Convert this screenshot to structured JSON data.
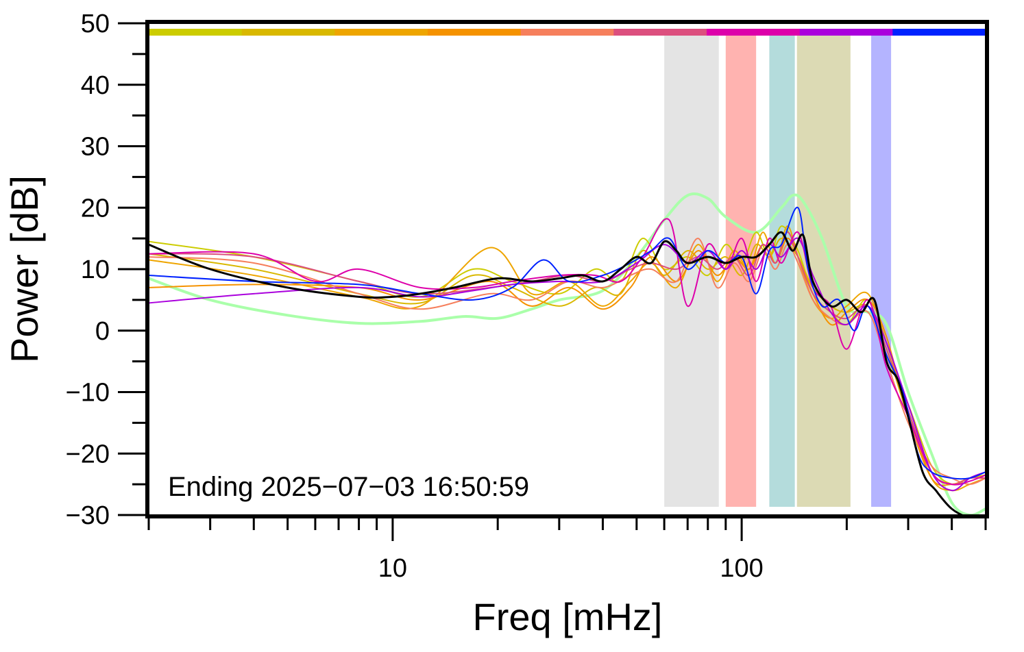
{
  "chart_data": {
    "type": "line",
    "xlabel": "Freq [mHz]",
    "ylabel": "Power [dB]",
    "x_scale": "log",
    "xlim": [
      2,
      500
    ],
    "ylim": [
      -30,
      50
    ],
    "x_major_ticks": [
      10,
      100
    ],
    "x_major_tick_labels": [
      "10",
      "100"
    ],
    "y_ticks": [
      -30,
      -20,
      -10,
      0,
      10,
      20,
      30,
      40,
      50
    ],
    "y_tick_labels": [
      "−30",
      "−20",
      "−10",
      "0",
      "10",
      "20",
      "30",
      "40",
      "50"
    ],
    "annotation": "Ending 2025−07−03 16:50:59",
    "grid": false,
    "time_bar_colors": [
      "#cccc00",
      "#d9b800",
      "#eea500",
      "#f59200",
      "#f67f5c",
      "#dc4f7e",
      "#dd00aa",
      "#aa00dd",
      "#0022ff"
    ],
    "bands": [
      {
        "from": 60,
        "to": 86,
        "color": "#e4e4e4"
      },
      {
        "from": 90,
        "to": 110,
        "color": "#ffb3b0"
      },
      {
        "from": 120,
        "to": 142,
        "color": "#b4dcdc"
      },
      {
        "from": 144,
        "to": 205,
        "color": "#dcdab4"
      },
      {
        "from": 235,
        "to": 268,
        "color": "#b4b4ff"
      }
    ],
    "series": [
      {
        "color": "#aaffaa",
        "width": 4,
        "x": [
          2,
          3,
          5,
          8,
          12,
          16,
          20,
          25,
          30,
          40,
          50,
          60,
          70,
          80,
          90,
          110,
          130,
          140,
          150,
          170,
          200,
          230,
          260,
          300,
          350,
          400,
          450,
          500
        ],
        "y": [
          8.5,
          5,
          2.5,
          1.2,
          1.5,
          2.3,
          2.0,
          3.5,
          5.0,
          6.5,
          12,
          18,
          22,
          21.5,
          18.5,
          16,
          20,
          22,
          21,
          15,
          4,
          3,
          1,
          -10,
          -20,
          -28,
          -30,
          -29
        ]
      },
      {
        "color": "#cccc00",
        "width": 2,
        "x": [
          2,
          4,
          8,
          12,
          17,
          22,
          30,
          38,
          45,
          52,
          60,
          70,
          80,
          90,
          100,
          110,
          120,
          130,
          145,
          160,
          180,
          200,
          230,
          260,
          300,
          350,
          400,
          450,
          500
        ],
        "y": [
          14.5,
          12,
          8,
          5.5,
          10,
          8,
          6,
          10,
          8,
          15,
          10,
          12,
          9,
          14,
          11,
          16,
          12,
          17,
          13,
          6,
          3,
          1,
          5,
          -4,
          -12,
          -22,
          -25,
          -24,
          -24
        ]
      },
      {
        "color": "#d9b800",
        "width": 2,
        "x": [
          2,
          4,
          8,
          12,
          17,
          22,
          30,
          38,
          45,
          52,
          60,
          70,
          80,
          90,
          100,
          110,
          120,
          130,
          145,
          160,
          180,
          200,
          230,
          260,
          300,
          350,
          400,
          450,
          500
        ],
        "y": [
          12.5,
          10,
          6,
          4.5,
          9,
          7,
          4,
          7,
          6,
          13,
          9,
          13,
          10,
          12,
          9,
          14,
          12,
          15,
          12,
          7,
          4,
          3,
          4,
          -3,
          -14,
          -23,
          -25,
          -24,
          -23.5
        ]
      },
      {
        "color": "#eea500",
        "width": 2,
        "x": [
          2,
          4,
          8,
          12,
          19,
          25,
          32,
          40,
          48,
          55,
          65,
          75,
          85,
          95,
          105,
          115,
          125,
          135,
          145,
          160,
          180,
          200,
          230,
          260,
          300,
          350,
          400,
          450,
          500
        ],
        "y": [
          11.5,
          9,
          5.5,
          4,
          13.5,
          6,
          8,
          4,
          8,
          11,
          7,
          14,
          8,
          13,
          10,
          16,
          11,
          17,
          12,
          5,
          2,
          4,
          6,
          -2,
          -13,
          -24,
          -26,
          -25,
          -24
        ]
      },
      {
        "color": "#f59200",
        "width": 2,
        "x": [
          2,
          4,
          8,
          12,
          19,
          25,
          32,
          40,
          48,
          55,
          65,
          75,
          85,
          95,
          105,
          115,
          125,
          135,
          145,
          160,
          180,
          200,
          230,
          260,
          300,
          350,
          400,
          450,
          500
        ],
        "y": [
          7,
          7.5,
          7,
          5,
          8,
          4,
          7,
          3.5,
          7,
          12,
          8,
          13,
          9,
          12,
          10,
          14,
          11,
          15,
          12,
          6,
          1,
          3,
          5,
          -1,
          -14,
          -24,
          -25,
          -24,
          -24
        ]
      },
      {
        "color": "#f67f5c",
        "width": 2,
        "x": [
          2,
          4,
          8,
          12,
          19,
          25,
          32,
          40,
          48,
          55,
          65,
          75,
          85,
          95,
          105,
          115,
          125,
          135,
          145,
          160,
          180,
          200,
          230,
          260,
          300,
          350,
          400,
          450,
          500
        ],
        "y": [
          12,
          11,
          6,
          3.5,
          6,
          5,
          8,
          7,
          9,
          10,
          8,
          15,
          7,
          11,
          8,
          13,
          10,
          14,
          11,
          5,
          2,
          1,
          3,
          -5,
          -15,
          -22,
          -24,
          -25,
          -24
        ]
      },
      {
        "color": "#dc4f7e",
        "width": 2,
        "x": [
          2,
          4,
          8,
          12,
          19,
          25,
          32,
          40,
          48,
          55,
          65,
          75,
          85,
          95,
          105,
          115,
          125,
          135,
          145,
          160,
          180,
          200,
          230,
          260,
          300,
          350,
          400,
          450,
          500
        ],
        "y": [
          12.5,
          12,
          8,
          6,
          7,
          8,
          9,
          8,
          10,
          11,
          10,
          12,
          10,
          12,
          9,
          14,
          11,
          16,
          12,
          6,
          3,
          2,
          4,
          -3,
          -13,
          -23,
          -25,
          -24,
          -24
        ]
      },
      {
        "color": "#dd00aa",
        "width": 2,
        "x": [
          2,
          4,
          6,
          8,
          12,
          17,
          22,
          30,
          38,
          45,
          52,
          62,
          70,
          80,
          90,
          100,
          110,
          120,
          130,
          145,
          160,
          180,
          200,
          230,
          260,
          300,
          350,
          400,
          450,
          500
        ],
        "y": [
          12.5,
          12.5,
          8,
          10,
          7,
          7,
          8,
          9,
          9,
          8,
          12,
          18,
          4,
          14,
          10,
          15,
          8,
          15,
          11,
          16,
          7,
          4,
          -3,
          5,
          -6,
          -14,
          -23,
          -25,
          -24.5,
          -23.5
        ]
      },
      {
        "color": "#aa00dd",
        "width": 2,
        "x": [
          2,
          4,
          8,
          12,
          17,
          22,
          30,
          40,
          50,
          60,
          70,
          80,
          90,
          100,
          110,
          120,
          130,
          145,
          160,
          180,
          200,
          230,
          260,
          300,
          350,
          400,
          450,
          500
        ],
        "y": [
          4.5,
          6,
          7,
          5.5,
          6.5,
          7.5,
          8,
          8,
          11,
          14,
          11,
          13,
          10,
          13,
          10,
          14,
          12,
          15,
          9,
          3,
          1,
          4,
          -2,
          -12,
          -23,
          -26,
          -24,
          -23
        ]
      },
      {
        "color": "#0022ff",
        "width": 2,
        "x": [
          2,
          4,
          8,
          12,
          17,
          22,
          27,
          32,
          40,
          48,
          55,
          62,
          70,
          80,
          90,
          100,
          110,
          120,
          130,
          145,
          155,
          170,
          190,
          210,
          230,
          260,
          290,
          320,
          350,
          400,
          450,
          500
        ],
        "y": [
          9,
          8,
          7.5,
          6,
          5,
          7,
          11.5,
          8,
          9,
          11,
          13,
          15,
          10,
          13,
          11,
          12,
          6,
          13,
          14,
          20,
          10,
          4,
          5,
          0,
          4,
          -4,
          -10,
          -20,
          -23,
          -24,
          -24,
          -23
        ]
      },
      {
        "color": "#000000",
        "width": 3,
        "x": [
          2,
          3,
          5,
          8,
          10,
          12,
          15,
          20,
          25,
          30,
          35,
          40,
          45,
          50,
          55,
          60,
          65,
          70,
          80,
          90,
          100,
          110,
          120,
          130,
          140,
          150,
          160,
          180,
          200,
          220,
          240,
          260,
          280,
          300,
          330,
          360,
          400,
          450,
          500
        ],
        "y": [
          14,
          10,
          7,
          5.5,
          5.5,
          6,
          7,
          8.5,
          8,
          8.5,
          9,
          8,
          10,
          12,
          11,
          14.5,
          13,
          11,
          12,
          11,
          12,
          12,
          14,
          16,
          13,
          15.5,
          8,
          4,
          5,
          3,
          5,
          -5,
          -8,
          -14,
          -23,
          -26,
          -29,
          -30.5,
          -31
        ]
      }
    ]
  }
}
